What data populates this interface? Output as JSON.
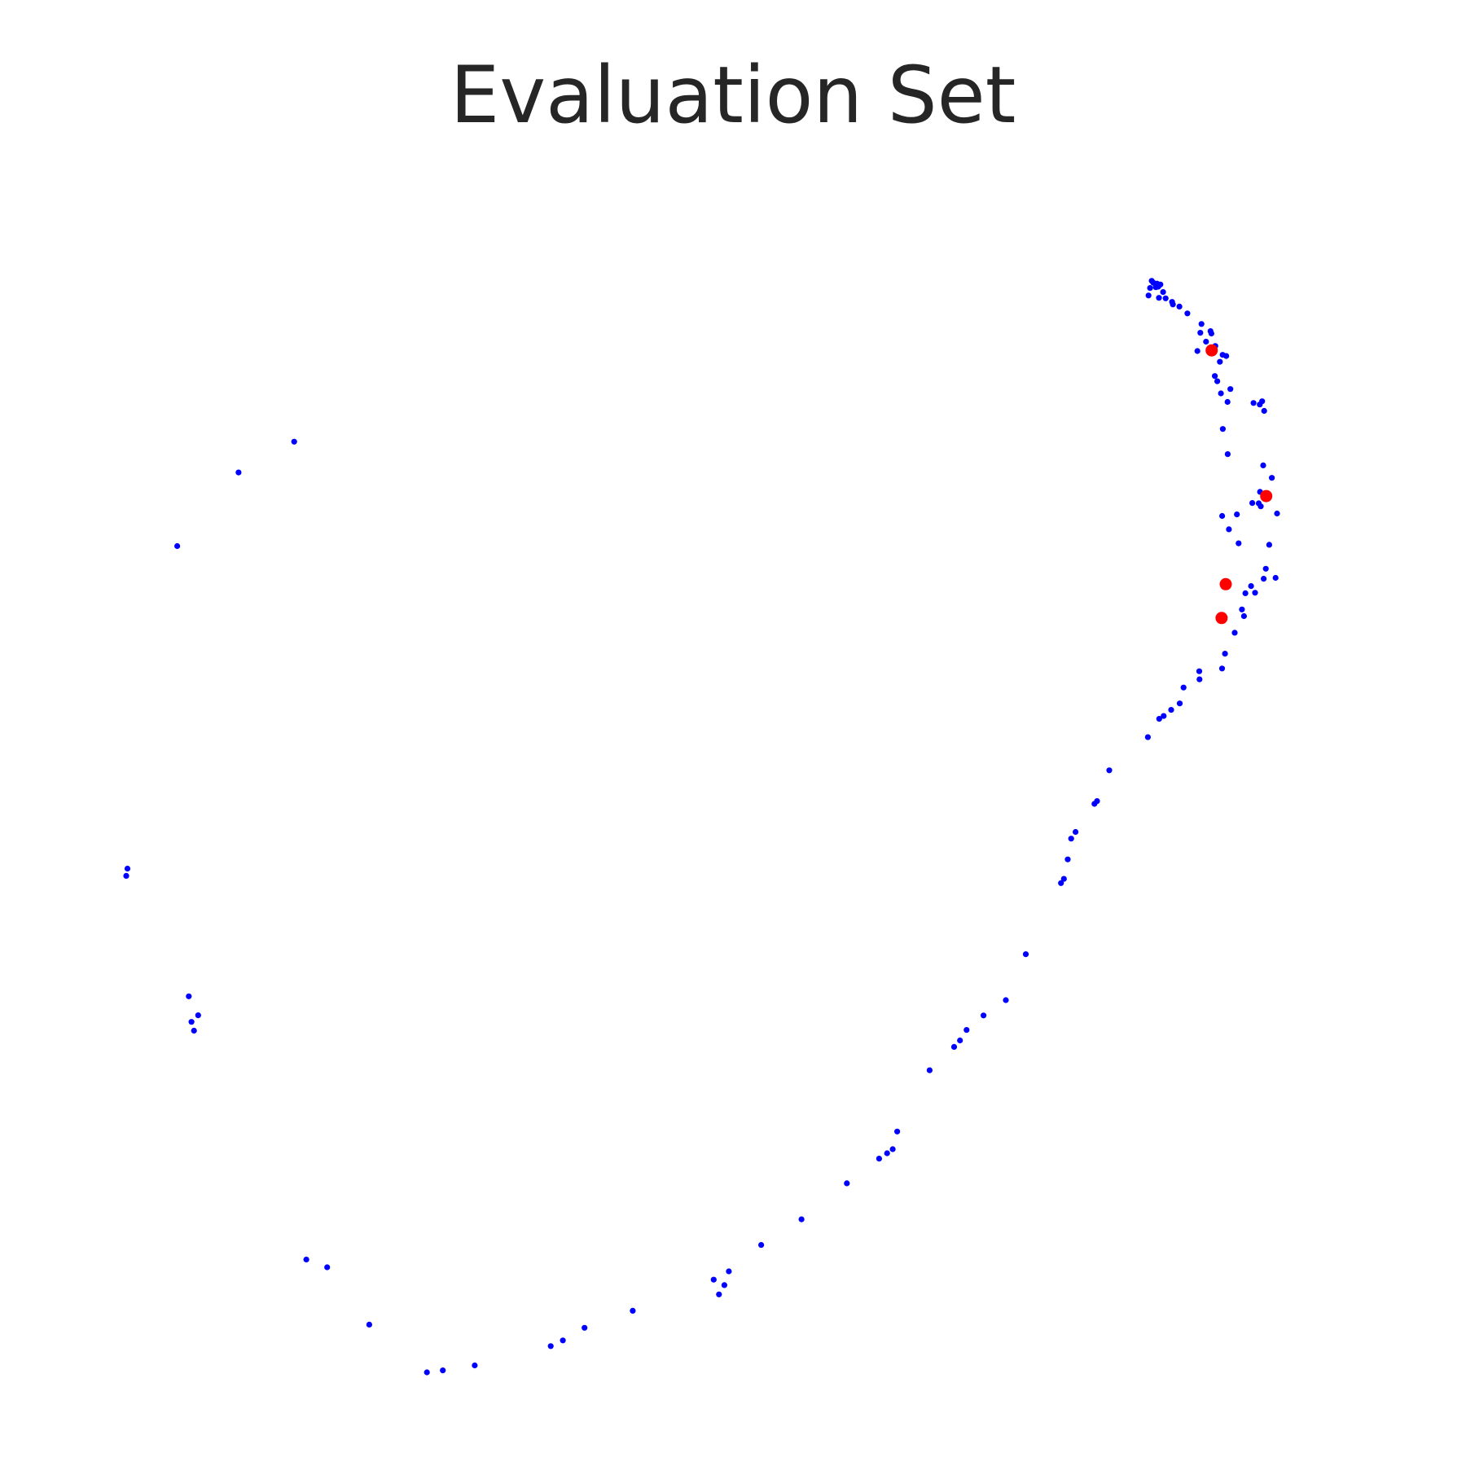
{
  "chart_data": {
    "type": "scatter",
    "title": "Evaluation Set",
    "xlabel": "",
    "ylabel": "",
    "xlim": [
      0,
      1
    ],
    "ylim": [
      0,
      1
    ],
    "axes_visible": false,
    "grid": false,
    "legend": "none",
    "series": [
      {
        "color": "#0000ff",
        "marker": "small-dot",
        "points": [
          [
            0.8366,
            0.9469
          ],
          [
            0.8379,
            0.9452
          ],
          [
            0.8394,
            0.9442
          ],
          [
            0.8409,
            0.9444
          ],
          [
            0.8437,
            0.9436
          ],
          [
            0.84,
            0.9412
          ],
          [
            0.8419,
            0.9417
          ],
          [
            0.8353,
            0.9405
          ],
          [
            0.8459,
            0.9369
          ],
          [
            0.834,
            0.9339
          ],
          [
            0.8425,
            0.9318
          ],
          [
            0.848,
            0.9314
          ],
          [
            0.8532,
            0.9282
          ],
          [
            0.8592,
            0.9241
          ],
          [
            0.8539,
            0.926
          ],
          [
            0.8657,
            0.9181
          ],
          [
            0.8772,
            0.9087
          ],
          [
            0.8846,
            0.9024
          ],
          [
            0.8763,
            0.9009
          ],
          [
            0.8853,
            0.9003
          ],
          [
            0.8809,
            0.8931
          ],
          [
            0.8885,
            0.8893
          ],
          [
            0.8739,
            0.8848
          ],
          [
            0.8945,
            0.8814
          ],
          [
            0.8974,
            0.8804
          ],
          [
            0.8922,
            0.8753
          ],
          [
            0.8881,
            0.8627
          ],
          [
            0.8901,
            0.8581
          ],
          [
            0.9008,
            0.8512
          ],
          [
            0.8931,
            0.8474
          ],
          [
            0.8985,
            0.8398
          ],
          [
            0.9197,
            0.8389
          ],
          [
            0.9248,
            0.8375
          ],
          [
            0.9267,
            0.8404
          ],
          [
            0.9284,
            0.8319
          ],
          [
            0.8946,
            0.8159
          ],
          [
            0.8986,
            0.7937
          ],
          [
            0.9276,
            0.7837
          ],
          [
            0.9346,
            0.7727
          ],
          [
            0.925,
            0.7603
          ],
          [
            0.9256,
            0.7475
          ],
          [
            0.9187,
            0.7505
          ],
          [
            0.9239,
            0.7502
          ],
          [
            0.9389,
            0.7412
          ],
          [
            0.8941,
            0.739
          ],
          [
            0.9061,
            0.7404
          ],
          [
            0.8996,
            0.7272
          ],
          [
            0.9075,
            0.7148
          ],
          [
            0.9325,
            0.7135
          ],
          [
            0.9297,
            0.6924
          ],
          [
            0.928,
            0.6835
          ],
          [
            0.9377,
            0.6843
          ],
          [
            0.9177,
            0.677
          ],
          [
            0.9209,
            0.6711
          ],
          [
            0.913,
            0.6707
          ],
          [
            0.9102,
            0.6564
          ],
          [
            0.9119,
            0.6505
          ],
          [
            0.9043,
            0.6358
          ],
          [
            0.8964,
            0.6173
          ],
          [
            0.894,
            0.6042
          ],
          [
            0.8754,
            0.6017
          ],
          [
            0.8756,
            0.5946
          ],
          [
            0.8626,
            0.5873
          ],
          [
            0.8595,
            0.5733
          ],
          [
            0.8525,
            0.5676
          ],
          [
            0.8464,
            0.5622
          ],
          [
            0.8427,
            0.5597
          ],
          [
            0.8335,
            0.5435
          ],
          [
            0.802,
            0.5142
          ],
          [
            0.792,
            0.487
          ],
          [
            0.7899,
            0.4845
          ],
          [
            0.7745,
            0.4597
          ],
          [
            0.7709,
            0.4538
          ],
          [
            0.7681,
            0.4354
          ],
          [
            0.765,
            0.4182
          ],
          [
            0.7626,
            0.4145
          ],
          [
            0.7339,
            0.3516
          ],
          [
            0.7176,
            0.311
          ],
          [
            0.6994,
            0.2975
          ],
          [
            0.6856,
            0.2847
          ],
          [
            0.6802,
            0.2754
          ],
          [
            0.6754,
            0.2697
          ],
          [
            0.6554,
            0.249
          ],
          [
            0.629,
            0.1949
          ],
          [
            0.6253,
            0.1793
          ],
          [
            0.6207,
            0.1757
          ],
          [
            0.6142,
            0.1709
          ],
          [
            0.5879,
            0.1491
          ],
          [
            0.5509,
            0.1173
          ],
          [
            0.518,
            0.0946
          ],
          [
            0.4916,
            0.0713
          ],
          [
            0.488,
            0.0591
          ],
          [
            0.4793,
            0.0639
          ],
          [
            0.4836,
            0.0509
          ],
          [
            0.4132,
            0.0364
          ],
          [
            0.3739,
            0.0214
          ],
          [
            0.3562,
            0.0102
          ],
          [
            0.3463,
            0.0052
          ],
          [
            0.2843,
            -0.0119
          ],
          [
            0.2583,
            -0.0163
          ],
          [
            0.2453,
            -0.018
          ],
          [
            0.1983,
            0.0242
          ],
          [
            0.1639,
            0.0749
          ],
          [
            0.1469,
            0.0817
          ],
          [
            0.0553,
            0.284
          ],
          [
            0.0532,
            0.2918
          ],
          [
            0.0587,
            0.2976
          ],
          [
            0.051,
            0.3144
          ],
          [
            0.001,
            0.4273
          ],
          [
            0.0,
            0.4209
          ],
          [
            0.0416,
            0.7124
          ],
          [
            0.0916,
            0.7775
          ],
          [
            0.137,
            0.8047
          ]
        ]
      },
      {
        "color": "#ff0000",
        "marker": "dot",
        "points": [
          [
            0.8855,
            0.8854
          ],
          [
            0.93,
            0.7566
          ],
          [
            0.897,
            0.6787
          ],
          [
            0.8936,
            0.6488
          ]
        ]
      }
    ]
  }
}
